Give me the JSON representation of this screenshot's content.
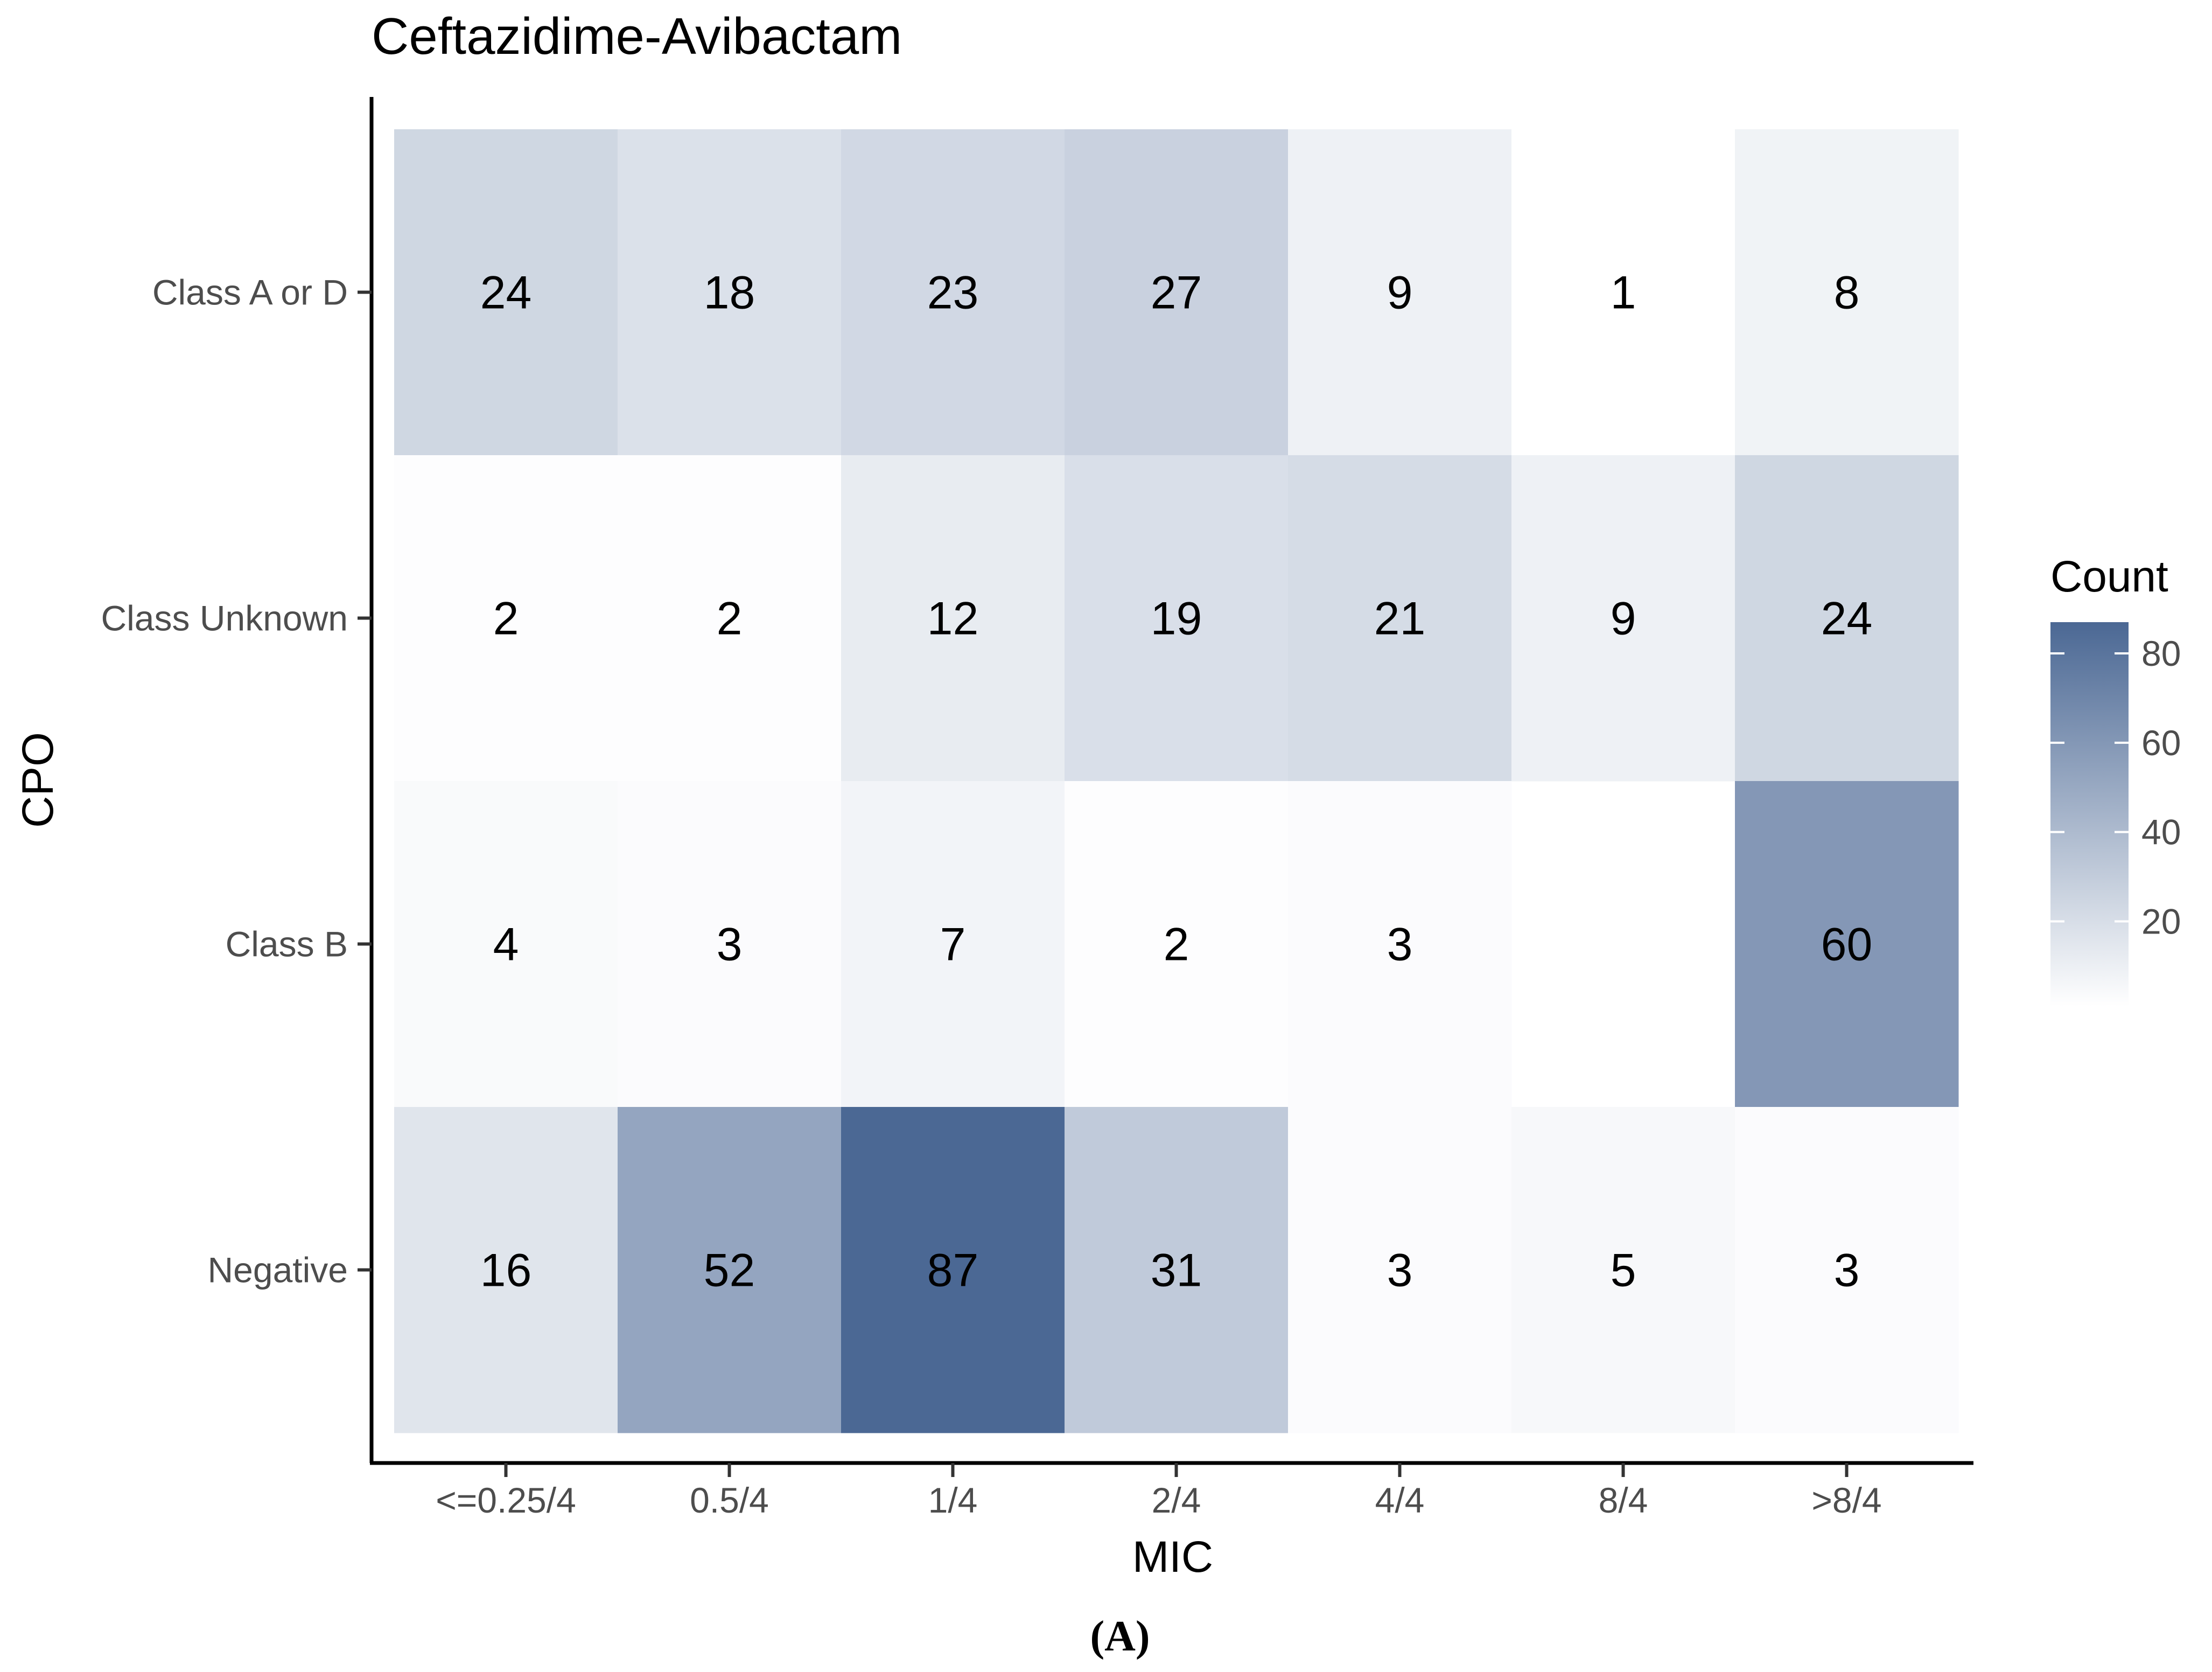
{
  "chart_data": {
    "type": "heatmap",
    "title": "Ceftazidime-Avibactam",
    "xlabel": "MIC",
    "ylabel": "CPO",
    "x_categories": [
      "<=0.25/4",
      "0.5/4",
      "1/4",
      "2/4",
      "4/4",
      "8/4",
      ">8/4"
    ],
    "y_categories": [
      "Class A or D",
      "Class Unknown",
      "Class B",
      "Negative"
    ],
    "values": [
      [
        24,
        18,
        23,
        27,
        9,
        1,
        8
      ],
      [
        2,
        2,
        12,
        19,
        21,
        9,
        24
      ],
      [
        4,
        3,
        7,
        2,
        3,
        null,
        60
      ],
      [
        16,
        52,
        87,
        31,
        3,
        5,
        3
      ]
    ],
    "legend": {
      "title": "Count",
      "ticks": [
        20,
        40,
        60,
        80
      ],
      "min": 1,
      "max": 87,
      "position": "right"
    },
    "colors": {
      "low": "#ffffff",
      "high": "#4b6894",
      "axis": "#000000",
      "tick_label": "#4d4d4d",
      "cell_text": "#000000"
    },
    "panel_label": "(A)"
  }
}
